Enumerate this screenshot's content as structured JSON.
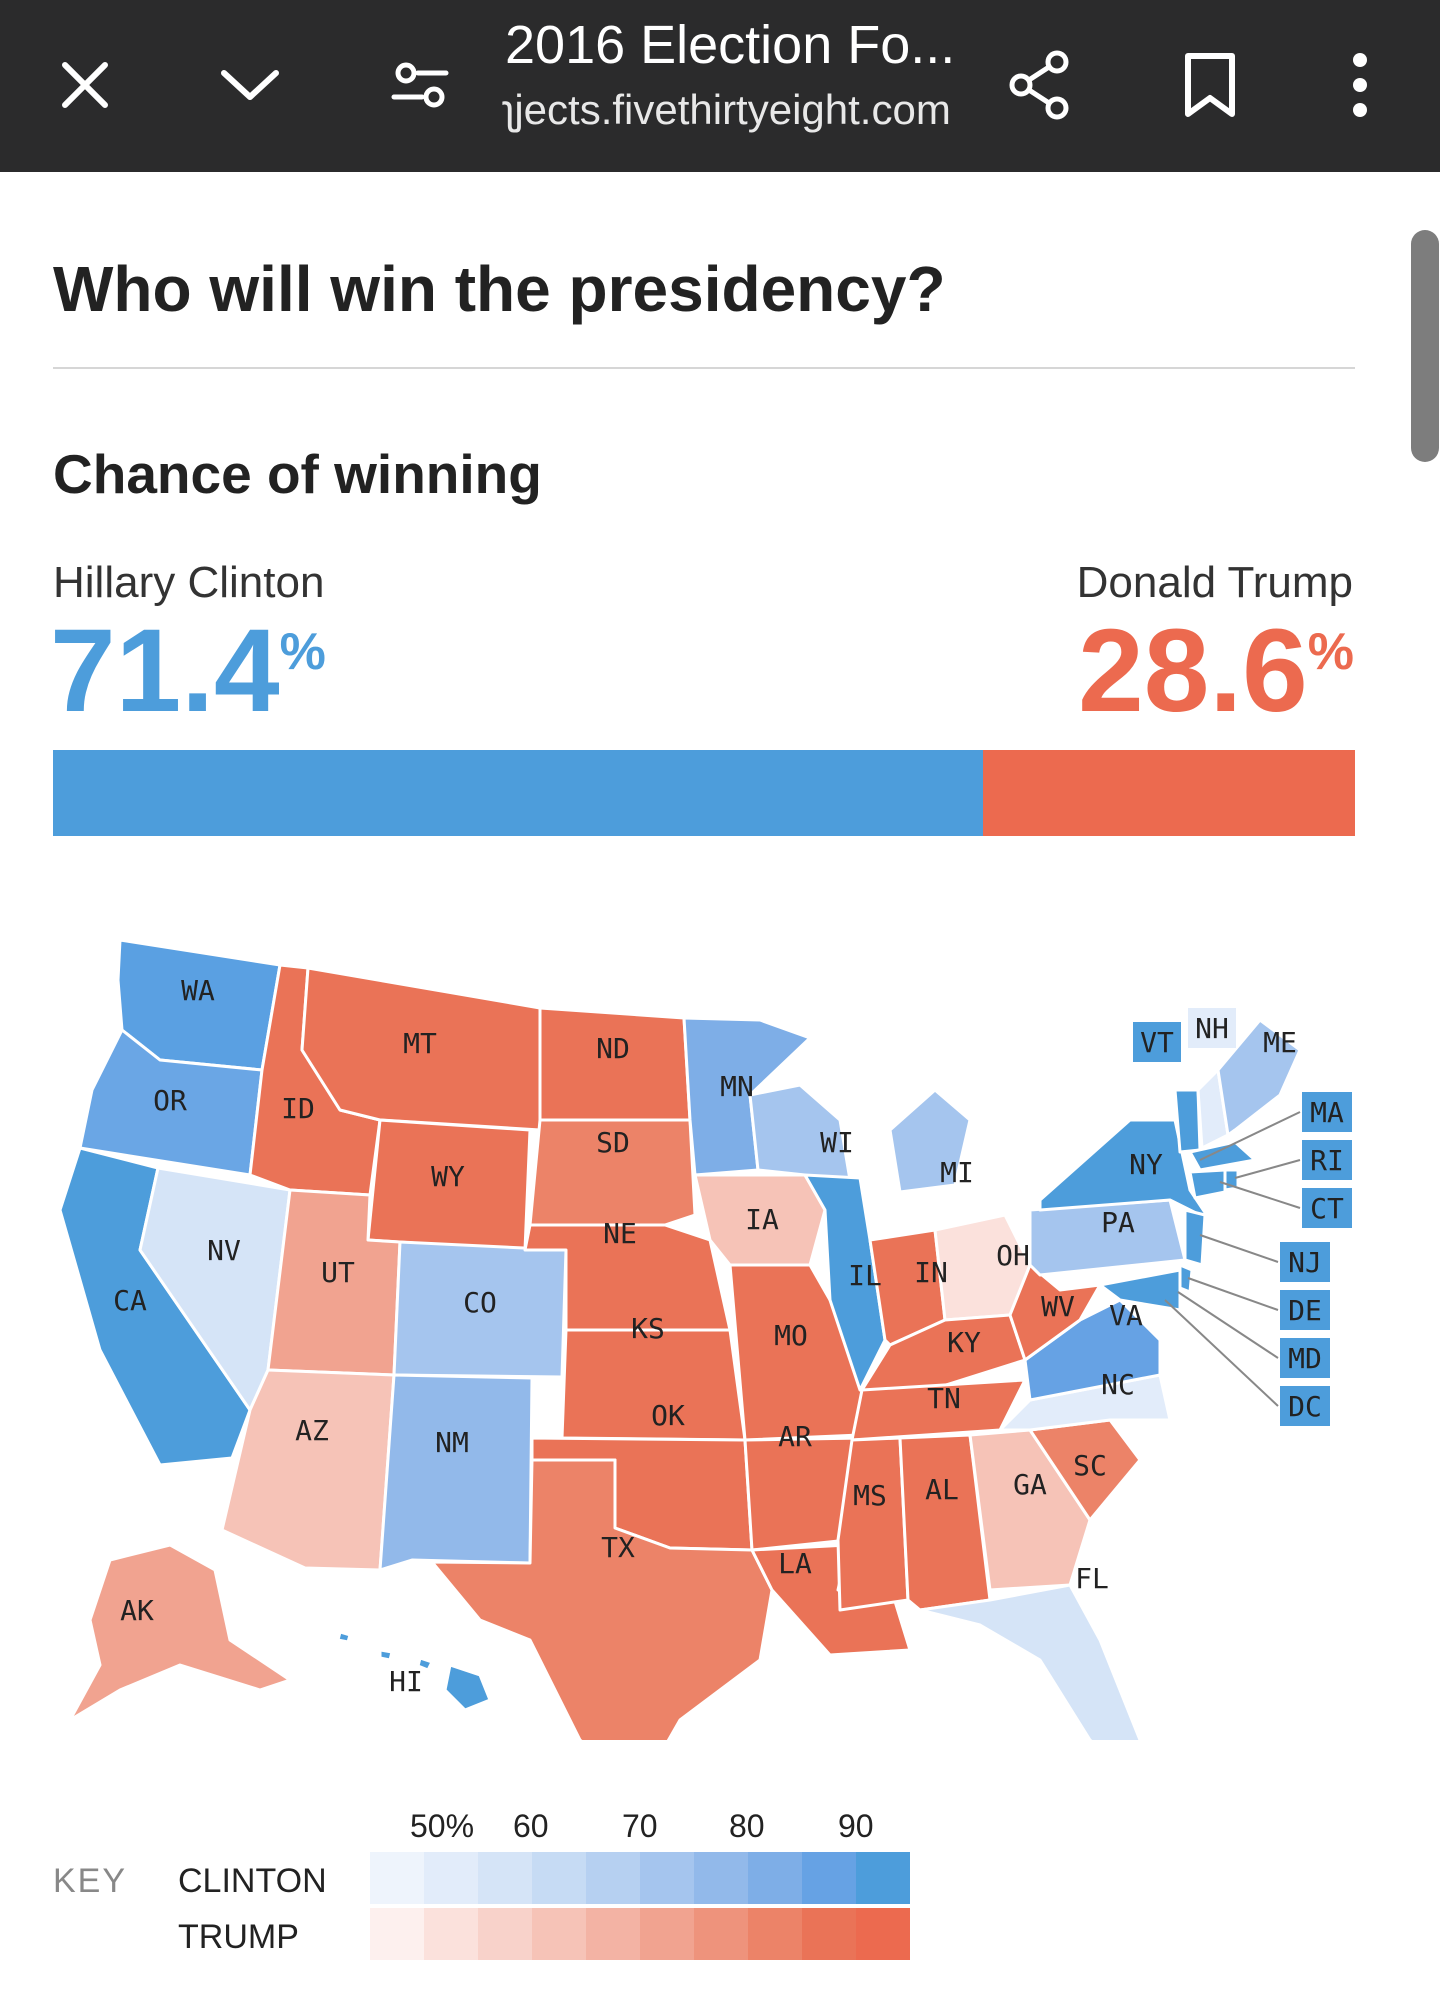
{
  "browser": {
    "title": "2016 Election Fo...",
    "url": "ʅjects.fivethirtyeight.com",
    "icons": [
      "close-icon",
      "chevron-down-icon",
      "filter-icon",
      "share-icon",
      "bookmark-icon",
      "more-vert-icon"
    ]
  },
  "page": {
    "heading": "Who will win the presidency?",
    "subheading": "Chance of winning",
    "clinton": {
      "name": "Hillary Clinton",
      "pct": "71.4",
      "unit": "%",
      "color": "#4d9ddb"
    },
    "trump": {
      "name": "Donald Trump",
      "pct": "28.6",
      "unit": "%",
      "color": "#ec6a4f"
    }
  },
  "chart_data": {
    "type": "bar",
    "categories": [
      "Hillary Clinton",
      "Donald Trump"
    ],
    "values": [
      71.4,
      28.6
    ]
  },
  "map": {
    "states": {
      "WA": "WA",
      "OR": "OR",
      "CA": "CA",
      "NV": "NV",
      "ID": "ID",
      "MT": "MT",
      "WY": "WY",
      "UT": "UT",
      "AZ": "AZ",
      "CO": "CO",
      "NM": "NM",
      "ND": "ND",
      "SD": "SD",
      "NE": "NE",
      "KS": "KS",
      "OK": "OK",
      "TX": "TX",
      "MN": "MN",
      "IA": "IA",
      "MO": "MO",
      "AR": "AR",
      "LA": "LA",
      "WI": "WI",
      "IL": "IL",
      "MI": "MI",
      "IN": "IN",
      "OH": "OH",
      "KY": "KY",
      "TN": "TN",
      "MS": "MS",
      "AL": "AL",
      "GA": "GA",
      "FL": "FL",
      "SC": "SC",
      "NC": "NC",
      "VA": "VA",
      "WV": "WV",
      "PA": "PA",
      "NY": "NY",
      "VT": "VT",
      "NH": "NH",
      "ME": "ME",
      "MA": "MA",
      "RI": "RI",
      "CT": "CT",
      "NJ": "NJ",
      "DE": "DE",
      "MD": "MD",
      "DC": "DC",
      "AK": "AK",
      "HI": "HI"
    }
  },
  "key": {
    "title": "KEY",
    "clinton_label": "CLINTON",
    "trump_label": "TRUMP",
    "ticks": [
      "50%",
      "60",
      "70",
      "80",
      "90"
    ],
    "clinton_colors": [
      "#eef4fc",
      "#e2ecfa",
      "#d5e4f7",
      "#c6dbf4",
      "#b6d0f1",
      "#a5c5ee",
      "#92b9ea",
      "#7eaee7",
      "#66a2e4",
      "#4d9ddb"
    ],
    "trump_colors": [
      "#fdf0ee",
      "#fbe1dc",
      "#f8d2ca",
      "#f6c3b7",
      "#f3b3a4",
      "#f1a390",
      "#ee937c",
      "#ec8368",
      "#ea7357",
      "#ec6a4f"
    ]
  }
}
